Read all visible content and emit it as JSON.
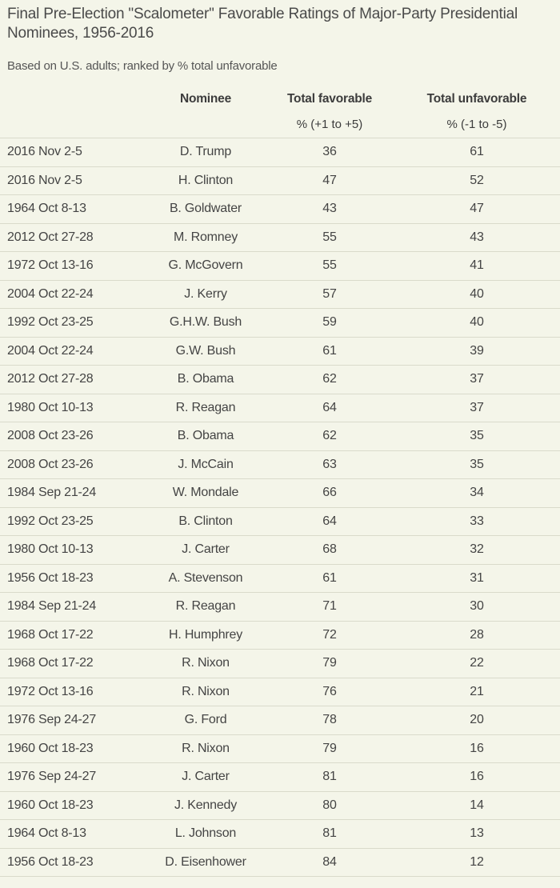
{
  "title": "Final Pre-Election \"Scalometer\" Favorable Ratings of Major-Party Presidential Nominees, 1956-2016",
  "subtitle": "Based on U.S. adults; ranked by % total unfavorable",
  "chart_data": {
    "type": "table",
    "columns": [
      "",
      "Nominee",
      "Total favorable",
      "Total unfavorable"
    ],
    "units": [
      "",
      "",
      "% (+1 to +5)",
      "% (-1 to -5)"
    ],
    "rows": [
      [
        "2016 Nov 2-5",
        "D. Trump",
        "36",
        "61"
      ],
      [
        "2016 Nov 2-5",
        "H. Clinton",
        "47",
        "52"
      ],
      [
        "1964 Oct 8-13",
        "B. Goldwater",
        "43",
        "47"
      ],
      [
        "2012 Oct 27-28",
        "M. Romney",
        "55",
        "43"
      ],
      [
        "1972 Oct 13-16",
        "G. McGovern",
        "55",
        "41"
      ],
      [
        "2004 Oct 22-24",
        "J. Kerry",
        "57",
        "40"
      ],
      [
        "1992 Oct 23-25",
        "G.H.W. Bush",
        "59",
        "40"
      ],
      [
        "2004 Oct 22-24",
        "G.W. Bush",
        "61",
        "39"
      ],
      [
        "2012 Oct 27-28",
        "B. Obama",
        "62",
        "37"
      ],
      [
        "1980 Oct 10-13",
        "R. Reagan",
        "64",
        "37"
      ],
      [
        "2008 Oct 23-26",
        "B. Obama",
        "62",
        "35"
      ],
      [
        "2008 Oct 23-26",
        "J. McCain",
        "63",
        "35"
      ],
      [
        "1984 Sep 21-24",
        "W. Mondale",
        "66",
        "34"
      ],
      [
        "1992 Oct 23-25",
        "B. Clinton",
        "64",
        "33"
      ],
      [
        "1980 Oct 10-13",
        "J. Carter",
        "68",
        "32"
      ],
      [
        "1956 Oct 18-23",
        "A. Stevenson",
        "61",
        "31"
      ],
      [
        "1984 Sep 21-24",
        "R. Reagan",
        "71",
        "30"
      ],
      [
        "1968 Oct 17-22",
        "H. Humphrey",
        "72",
        "28"
      ],
      [
        "1968 Oct 17-22",
        "R. Nixon",
        "79",
        "22"
      ],
      [
        "1972 Oct 13-16",
        "R. Nixon",
        "76",
        "21"
      ],
      [
        "1976 Sep 24-27",
        "G. Ford",
        "78",
        "20"
      ],
      [
        "1960 Oct 18-23",
        "R. Nixon",
        "79",
        "16"
      ],
      [
        "1976 Sep 24-27",
        "J. Carter",
        "81",
        "16"
      ],
      [
        "1960 Oct 18-23",
        "J. Kennedy",
        "80",
        "14"
      ],
      [
        "1964 Oct 8-13",
        "L. Johnson",
        "81",
        "13"
      ],
      [
        "1956 Oct 18-23",
        "D. Eisenhower",
        "84",
        "12"
      ]
    ]
  }
}
